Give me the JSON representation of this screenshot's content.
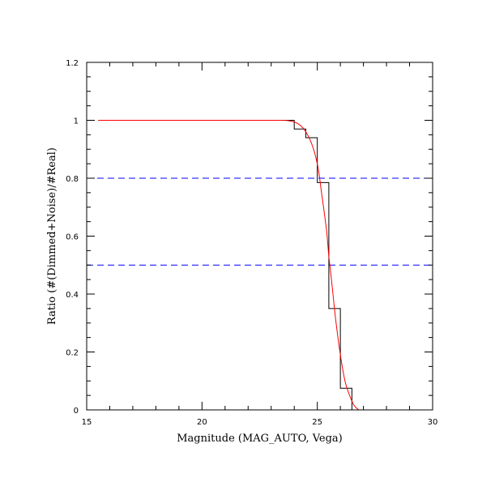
{
  "chart_data": {
    "type": "line",
    "title": "",
    "xlabel": "Magnitude (MAG_AUTO, Vega)",
    "ylabel": "Ratio (#(Dimmed+Noise)/#Real)",
    "xlim": [
      15,
      30
    ],
    "ylim": [
      0,
      1.2
    ],
    "grid": false,
    "x_ticks": [
      {
        "value": 15,
        "label": "15"
      },
      {
        "value": 20,
        "label": "20"
      },
      {
        "value": 25,
        "label": "25"
      },
      {
        "value": 30,
        "label": "30"
      }
    ],
    "y_ticks": [
      {
        "value": 0,
        "label": "0"
      },
      {
        "value": 0.2,
        "label": "0.2"
      },
      {
        "value": 0.4,
        "label": "0.4"
      },
      {
        "value": 0.6,
        "label": "0.6"
      },
      {
        "value": 0.8,
        "label": "0.8"
      },
      {
        "value": 1.0,
        "label": "1"
      },
      {
        "value": 1.2,
        "label": "1.2"
      }
    ],
    "series": [
      {
        "style": "step",
        "color": "#000000",
        "bin_edges": [
          15.5,
          16,
          16.5,
          17,
          17.5,
          18,
          18.5,
          19,
          19.5,
          20,
          20.5,
          21,
          21.5,
          22,
          22.5,
          23,
          23.5,
          24,
          24.5,
          25,
          25.5,
          26,
          26.5,
          27,
          27.5,
          28,
          28.5,
          29,
          29.5,
          30
        ],
        "values": [
          1,
          1,
          1,
          1,
          1,
          1,
          1,
          1,
          1,
          1,
          1,
          1,
          1,
          1,
          1,
          1,
          1,
          0.97,
          0.94,
          0.785,
          0.35,
          0.075,
          0,
          0,
          0,
          0,
          0,
          0,
          0
        ]
      },
      {
        "style": "smooth",
        "color": "#ff0000",
        "x": [
          15.5,
          17,
          19,
          21,
          23,
          23.8,
          24.3,
          24.7,
          25.0,
          25.2,
          25.4,
          25.5,
          25.6,
          25.8,
          26.0,
          26.2,
          26.4,
          26.6,
          26.8
        ],
        "y": [
          1,
          1,
          1,
          1,
          1,
          0.998,
          0.98,
          0.93,
          0.85,
          0.74,
          0.62,
          0.53,
          0.46,
          0.31,
          0.19,
          0.1,
          0.05,
          0.015,
          0
        ]
      }
    ],
    "reference_lines": [
      {
        "y": 0.8,
        "color": "#0000ff",
        "style": "dashed"
      },
      {
        "y": 0.5,
        "color": "#0000ff",
        "style": "dashed"
      }
    ]
  }
}
